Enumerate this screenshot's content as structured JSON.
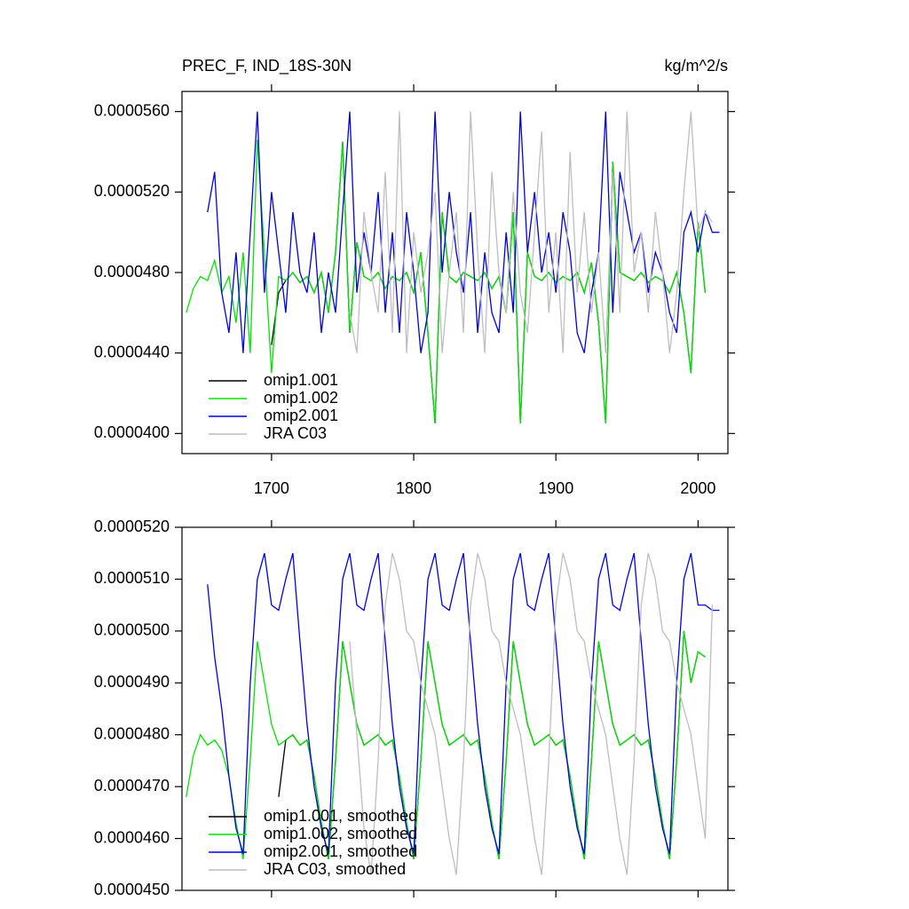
{
  "chart_data": [
    {
      "type": "line",
      "title": "PREC_F, IND_18S-30N",
      "units_label": "kg/m^2/s",
      "x": [
        1640,
        1645,
        1650,
        1655,
        1660,
        1665,
        1670,
        1675,
        1680,
        1685,
        1690,
        1695,
        1700,
        1705,
        1710,
        1715,
        1720,
        1725,
        1730,
        1735,
        1740,
        1745,
        1750,
        1755,
        1760,
        1765,
        1770,
        1775,
        1780,
        1785,
        1790,
        1795,
        1800,
        1805,
        1810,
        1815,
        1820,
        1825,
        1830,
        1835,
        1840,
        1845,
        1850,
        1855,
        1860,
        1865,
        1870,
        1875,
        1880,
        1885,
        1890,
        1895,
        1900,
        1905,
        1910,
        1915,
        1920,
        1925,
        1930,
        1935,
        1940,
        1945,
        1950,
        1955,
        1960,
        1965,
        1970,
        1975,
        1980,
        1985,
        1990,
        1995,
        2000,
        2005,
        2010,
        2015
      ],
      "xlim": [
        1637,
        2021
      ],
      "xticks": [
        1700,
        1800,
        1900,
        2000
      ],
      "xtick_labels": true,
      "ylim": [
        3.9e-05,
        5.7e-05
      ],
      "yticks": [
        {
          "value": 4e-05,
          "label": "0.0000400"
        },
        {
          "value": 4.4e-05,
          "label": "0.0000440"
        },
        {
          "value": 4.8e-05,
          "label": "0.0000480"
        },
        {
          "value": 5.2e-05,
          "label": "0.0000520"
        },
        {
          "value": 5.6e-05,
          "label": "0.0000560"
        }
      ],
      "legend": "lower left",
      "series": [
        {
          "name": "omip1.001",
          "color": "#000000",
          "values": [
            null,
            null,
            null,
            null,
            null,
            null,
            null,
            null,
            null,
            null,
            null,
            null,
            4.44e-05,
            4.7e-05,
            4.76e-05,
            4.8e-05,
            4.75e-05,
            4.78e-05,
            4.7e-05,
            4.8e-05,
            4.6e-05,
            4.9e-05,
            5.45e-05,
            4.5e-05,
            4.95e-05,
            4.78e-05,
            4.76e-05,
            4.8e-05,
            4.72e-05,
            4.78e-05,
            4.76e-05,
            4.8e-05,
            4.7e-05,
            4.9e-05,
            4.5e-05,
            4.05e-05,
            5.1e-05,
            4.78e-05,
            4.75e-05,
            4.8e-05,
            4.78e-05,
            4.76e-05,
            4.8e-05,
            4.72e-05,
            4.78e-05,
            4.6e-05,
            5.1e-05,
            4.05e-05,
            4.9e-05,
            4.78e-05,
            4.76e-05,
            4.8e-05,
            4.75e-05,
            4.78e-05,
            4.76e-05,
            4.8e-05,
            4.7e-05,
            4.85e-05,
            4.55e-05,
            4.05e-05,
            5.35e-05,
            4.8e-05,
            4.78e-05,
            4.76e-05,
            4.8e-05,
            4.75e-05,
            4.78e-05,
            4.76e-05,
            4.7e-05,
            4.8e-05,
            4.6e-05,
            4.3e-05,
            5.05e-05,
            4.7e-05,
            null,
            null
          ]
        },
        {
          "name": "omip1.002",
          "color": "#00e600",
          "values": [
            4.6e-05,
            4.72e-05,
            4.78e-05,
            4.76e-05,
            4.86e-05,
            4.7e-05,
            4.78e-05,
            4.55e-05,
            4.9e-05,
            4.4e-05,
            5.46e-05,
            4.9e-05,
            4.3e-05,
            4.78e-05,
            4.76e-05,
            4.8e-05,
            4.75e-05,
            4.78e-05,
            4.7e-05,
            4.8e-05,
            4.6e-05,
            4.9e-05,
            5.45e-05,
            4.5e-05,
            4.95e-05,
            4.78e-05,
            4.76e-05,
            4.8e-05,
            4.72e-05,
            4.78e-05,
            4.76e-05,
            4.8e-05,
            4.7e-05,
            4.9e-05,
            4.5e-05,
            4.05e-05,
            5.1e-05,
            4.78e-05,
            4.75e-05,
            4.8e-05,
            4.78e-05,
            4.76e-05,
            4.8e-05,
            4.72e-05,
            4.78e-05,
            4.6e-05,
            5.1e-05,
            4.05e-05,
            4.9e-05,
            4.78e-05,
            4.76e-05,
            4.8e-05,
            4.75e-05,
            4.78e-05,
            4.76e-05,
            4.8e-05,
            4.7e-05,
            4.85e-05,
            4.55e-05,
            4.05e-05,
            5.35e-05,
            4.8e-05,
            4.78e-05,
            4.76e-05,
            4.8e-05,
            4.75e-05,
            4.78e-05,
            4.76e-05,
            4.7e-05,
            4.8e-05,
            4.6e-05,
            4.3e-05,
            5.05e-05,
            4.7e-05,
            null,
            null
          ]
        },
        {
          "name": "omip2.001",
          "color": "#0000e6",
          "values": [
            null,
            null,
            null,
            5.1e-05,
            5.3e-05,
            4.7e-05,
            4.5e-05,
            4.9e-05,
            4.4e-05,
            5e-05,
            5.6e-05,
            4.7e-05,
            5.2e-05,
            4.9e-05,
            4.6e-05,
            5.1e-05,
            4.8e-05,
            4.7e-05,
            5e-05,
            4.5e-05,
            4.8e-05,
            4.6e-05,
            5.1e-05,
            5.6e-05,
            4.7e-05,
            5e-05,
            4.8e-05,
            5.2e-05,
            4.6e-05,
            5e-05,
            4.5e-05,
            5.1e-05,
            4.8e-05,
            4.4e-05,
            4.6e-05,
            5.6e-05,
            4.8e-05,
            5.2e-05,
            4.9e-05,
            4.7e-05,
            5.1e-05,
            4.5e-05,
            4.9e-05,
            4.6e-05,
            4.5e-05,
            5e-05,
            4.6e-05,
            5.6e-05,
            4.9e-05,
            5.2e-05,
            4.8e-05,
            5e-05,
            4.7e-05,
            5.1e-05,
            4.9e-05,
            4.5e-05,
            4.4e-05,
            4.7e-05,
            4.9e-05,
            5.6e-05,
            4.6e-05,
            5.3e-05,
            5.1e-05,
            4.9e-05,
            5e-05,
            4.7e-05,
            4.9e-05,
            4.8e-05,
            4.6e-05,
            4.5e-05,
            5e-05,
            5.1e-05,
            4.9e-05,
            5.1e-05,
            5e-05,
            5e-05
          ]
        },
        {
          "name": "JRA C03",
          "color": "#bebebe",
          "values": [
            null,
            null,
            null,
            null,
            null,
            null,
            null,
            null,
            null,
            null,
            null,
            null,
            null,
            null,
            null,
            null,
            null,
            null,
            null,
            null,
            null,
            null,
            null,
            4.6e-05,
            4.4e-05,
            5.1e-05,
            4.8e-05,
            4.6e-05,
            5.3e-05,
            4.5e-05,
            5.6e-05,
            4.4e-05,
            5e-05,
            4.7e-05,
            4.9e-05,
            5.2e-05,
            4.4e-05,
            4.8e-05,
            5.1e-05,
            4.5e-05,
            5.6e-05,
            4.9e-05,
            4.4e-05,
            5.3e-05,
            4.8e-05,
            4.6e-05,
            5.2e-05,
            4.7e-05,
            4.5e-05,
            5e-05,
            5.5e-05,
            4.6e-05,
            5e-05,
            4.4e-05,
            5.4e-05,
            4.7e-05,
            5.1e-05,
            4.6e-05,
            4.9e-05,
            4.4e-05,
            5.3e-05,
            4.6e-05,
            5.6e-05,
            4.8e-05,
            5e-05,
            4.6e-05,
            5.1e-05,
            4.8e-05,
            4.4e-05,
            4.7e-05,
            5.2e-05,
            5.6e-05,
            5e-05,
            5.1e-05,
            5.05e-05,
            null
          ]
        }
      ]
    },
    {
      "type": "line",
      "x": [
        1640,
        1645,
        1650,
        1655,
        1660,
        1665,
        1670,
        1675,
        1680,
        1685,
        1690,
        1695,
        1700,
        1705,
        1710,
        1715,
        1720,
        1725,
        1730,
        1735,
        1740,
        1745,
        1750,
        1755,
        1760,
        1765,
        1770,
        1775,
        1780,
        1785,
        1790,
        1795,
        1800,
        1805,
        1810,
        1815,
        1820,
        1825,
        1830,
        1835,
        1840,
        1845,
        1850,
        1855,
        1860,
        1865,
        1870,
        1875,
        1880,
        1885,
        1890,
        1895,
        1900,
        1905,
        1910,
        1915,
        1920,
        1925,
        1930,
        1935,
        1940,
        1945,
        1950,
        1955,
        1960,
        1965,
        1970,
        1975,
        1980,
        1985,
        1990,
        1995,
        2000,
        2005,
        2010,
        2015
      ],
      "xlim": [
        1637,
        2021
      ],
      "xticks": [
        1700,
        1800,
        1900,
        2000
      ],
      "xtick_labels": false,
      "ylim": [
        4.5e-05,
        5.2e-05
      ],
      "yticks": [
        {
          "value": 4.5e-05,
          "label": "0.0000450"
        },
        {
          "value": 4.6e-05,
          "label": "0.0000460"
        },
        {
          "value": 4.7e-05,
          "label": "0.0000470"
        },
        {
          "value": 4.8e-05,
          "label": "0.0000480"
        },
        {
          "value": 4.9e-05,
          "label": "0.0000490"
        },
        {
          "value": 5e-05,
          "label": "0.0000500"
        },
        {
          "value": 5.1e-05,
          "label": "0.0000510"
        },
        {
          "value": 5.2e-05,
          "label": "0.0000520"
        }
      ],
      "legend": "lower left",
      "series": [
        {
          "name": "omip1.001, smoothed",
          "color": "#000000",
          "values": [
            null,
            null,
            null,
            null,
            null,
            null,
            null,
            null,
            null,
            null,
            null,
            null,
            null,
            4.68e-05,
            4.79e-05,
            4.8e-05,
            4.78e-05,
            4.79e-05,
            4.72e-05,
            4.63e-05,
            4.56e-05,
            4.75e-05,
            4.98e-05,
            4.9e-05,
            4.82e-05,
            4.78e-05,
            4.79e-05,
            4.8e-05,
            4.78e-05,
            4.79e-05,
            4.72e-05,
            4.63e-05,
            4.56e-05,
            4.75e-05,
            4.98e-05,
            4.9e-05,
            4.82e-05,
            4.78e-05,
            4.79e-05,
            4.8e-05,
            4.78e-05,
            4.79e-05,
            4.72e-05,
            4.63e-05,
            4.56e-05,
            4.75e-05,
            4.98e-05,
            4.9e-05,
            4.82e-05,
            4.78e-05,
            4.79e-05,
            4.8e-05,
            4.78e-05,
            4.79e-05,
            4.72e-05,
            4.63e-05,
            4.56e-05,
            4.75e-05,
            4.98e-05,
            4.9e-05,
            4.82e-05,
            4.78e-05,
            4.79e-05,
            4.8e-05,
            4.78e-05,
            4.79e-05,
            4.72e-05,
            4.63e-05,
            4.56e-05,
            4.75e-05,
            5e-05,
            4.9e-05,
            4.96e-05,
            4.95e-05,
            null,
            null
          ]
        },
        {
          "name": "omip1.002, smoothed",
          "color": "#00e600",
          "values": [
            4.68e-05,
            4.76e-05,
            4.8e-05,
            4.78e-05,
            4.79e-05,
            4.77e-05,
            4.72e-05,
            4.63e-05,
            4.56e-05,
            4.75e-05,
            4.98e-05,
            4.9e-05,
            4.82e-05,
            4.78e-05,
            4.79e-05,
            4.8e-05,
            4.78e-05,
            4.79e-05,
            4.72e-05,
            4.63e-05,
            4.56e-05,
            4.75e-05,
            4.98e-05,
            4.9e-05,
            4.82e-05,
            4.78e-05,
            4.79e-05,
            4.8e-05,
            4.78e-05,
            4.79e-05,
            4.72e-05,
            4.63e-05,
            4.56e-05,
            4.75e-05,
            4.98e-05,
            4.9e-05,
            4.82e-05,
            4.78e-05,
            4.79e-05,
            4.8e-05,
            4.78e-05,
            4.79e-05,
            4.72e-05,
            4.63e-05,
            4.56e-05,
            4.75e-05,
            4.98e-05,
            4.9e-05,
            4.82e-05,
            4.78e-05,
            4.79e-05,
            4.8e-05,
            4.78e-05,
            4.79e-05,
            4.72e-05,
            4.63e-05,
            4.56e-05,
            4.75e-05,
            4.98e-05,
            4.9e-05,
            4.82e-05,
            4.78e-05,
            4.79e-05,
            4.8e-05,
            4.78e-05,
            4.79e-05,
            4.72e-05,
            4.63e-05,
            4.56e-05,
            4.75e-05,
            5e-05,
            4.9e-05,
            4.96e-05,
            4.95e-05,
            null,
            null
          ]
        },
        {
          "name": "omip2.001, smoothed",
          "color": "#0000e6",
          "values": [
            null,
            null,
            null,
            5.09e-05,
            4.95e-05,
            4.85e-05,
            4.72e-05,
            4.62e-05,
            4.57e-05,
            4.9e-05,
            5.1e-05,
            5.15e-05,
            5.05e-05,
            5.04e-05,
            5.1e-05,
            5.15e-05,
            4.98e-05,
            4.82e-05,
            4.7e-05,
            4.62e-05,
            4.57e-05,
            4.9e-05,
            5.1e-05,
            5.15e-05,
            5.05e-05,
            5.04e-05,
            5.1e-05,
            5.15e-05,
            4.98e-05,
            4.82e-05,
            4.7e-05,
            4.62e-05,
            4.57e-05,
            4.9e-05,
            5.1e-05,
            5.15e-05,
            5.05e-05,
            5.04e-05,
            5.1e-05,
            5.15e-05,
            4.98e-05,
            4.82e-05,
            4.7e-05,
            4.62e-05,
            4.57e-05,
            4.9e-05,
            5.1e-05,
            5.15e-05,
            5.05e-05,
            5.04e-05,
            5.1e-05,
            5.15e-05,
            4.98e-05,
            4.82e-05,
            4.7e-05,
            4.62e-05,
            4.57e-05,
            4.9e-05,
            5.1e-05,
            5.15e-05,
            5.05e-05,
            5.04e-05,
            5.1e-05,
            5.15e-05,
            4.98e-05,
            4.82e-05,
            4.7e-05,
            4.62e-05,
            4.57e-05,
            4.9e-05,
            5.1e-05,
            5.15e-05,
            5.05e-05,
            5.05e-05,
            5.04e-05,
            5.04e-05
          ]
        },
        {
          "name": "JRA C03, smoothed",
          "color": "#bebebe",
          "values": [
            null,
            null,
            null,
            null,
            null,
            null,
            null,
            null,
            null,
            null,
            null,
            null,
            null,
            null,
            null,
            null,
            null,
            null,
            null,
            null,
            null,
            null,
            null,
            4.98e-05,
            4.8e-05,
            4.62e-05,
            4.53e-05,
            4.75e-05,
            5.05e-05,
            5.15e-05,
            5.1e-05,
            5e-05,
            4.98e-05,
            4.9e-05,
            4.85e-05,
            4.8e-05,
            4.7e-05,
            4.6e-05,
            4.53e-05,
            4.75e-05,
            5.05e-05,
            5.15e-05,
            5.1e-05,
            5e-05,
            4.98e-05,
            4.9e-05,
            4.85e-05,
            4.8e-05,
            4.7e-05,
            4.6e-05,
            4.53e-05,
            4.75e-05,
            5.05e-05,
            5.15e-05,
            5.1e-05,
            5e-05,
            4.98e-05,
            4.9e-05,
            4.85e-05,
            4.8e-05,
            4.7e-05,
            4.6e-05,
            4.53e-05,
            4.75e-05,
            5.05e-05,
            5.15e-05,
            5.1e-05,
            5e-05,
            4.98e-05,
            4.9e-05,
            4.85e-05,
            4.8e-05,
            4.7e-05,
            4.6e-05,
            5.05e-05,
            null
          ]
        }
      ]
    }
  ]
}
